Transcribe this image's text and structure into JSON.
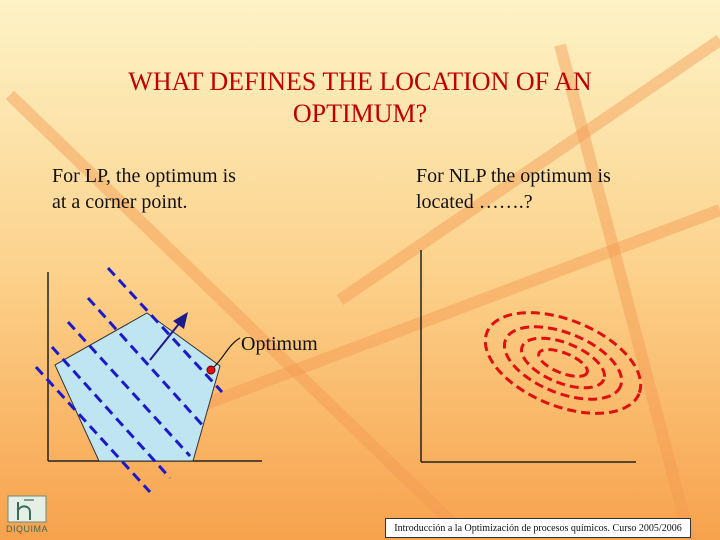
{
  "slide": {
    "title_line1": "WHAT DEFINES THE LOCATION OF AN",
    "title_line2": "OPTIMUM?",
    "left_text_line1": "For LP, the optimum is",
    "left_text_line2": "at a corner point.",
    "right_text_line1": "For NLP the optimum is",
    "right_text_line2": "located …….?",
    "optimum_label": "Optimum",
    "footer": "Introducción a la Optimización de procesos químicos. Curso 2005/2006",
    "logo_text": "DIQUIMA"
  },
  "colors": {
    "title": "#c00000",
    "objective_lines": "#1a1acc",
    "polygon_fill": "#bfe4f2",
    "contours": "#e01010",
    "background_top": "#fdf0c0",
    "background_bottom": "#f6a04a"
  }
}
